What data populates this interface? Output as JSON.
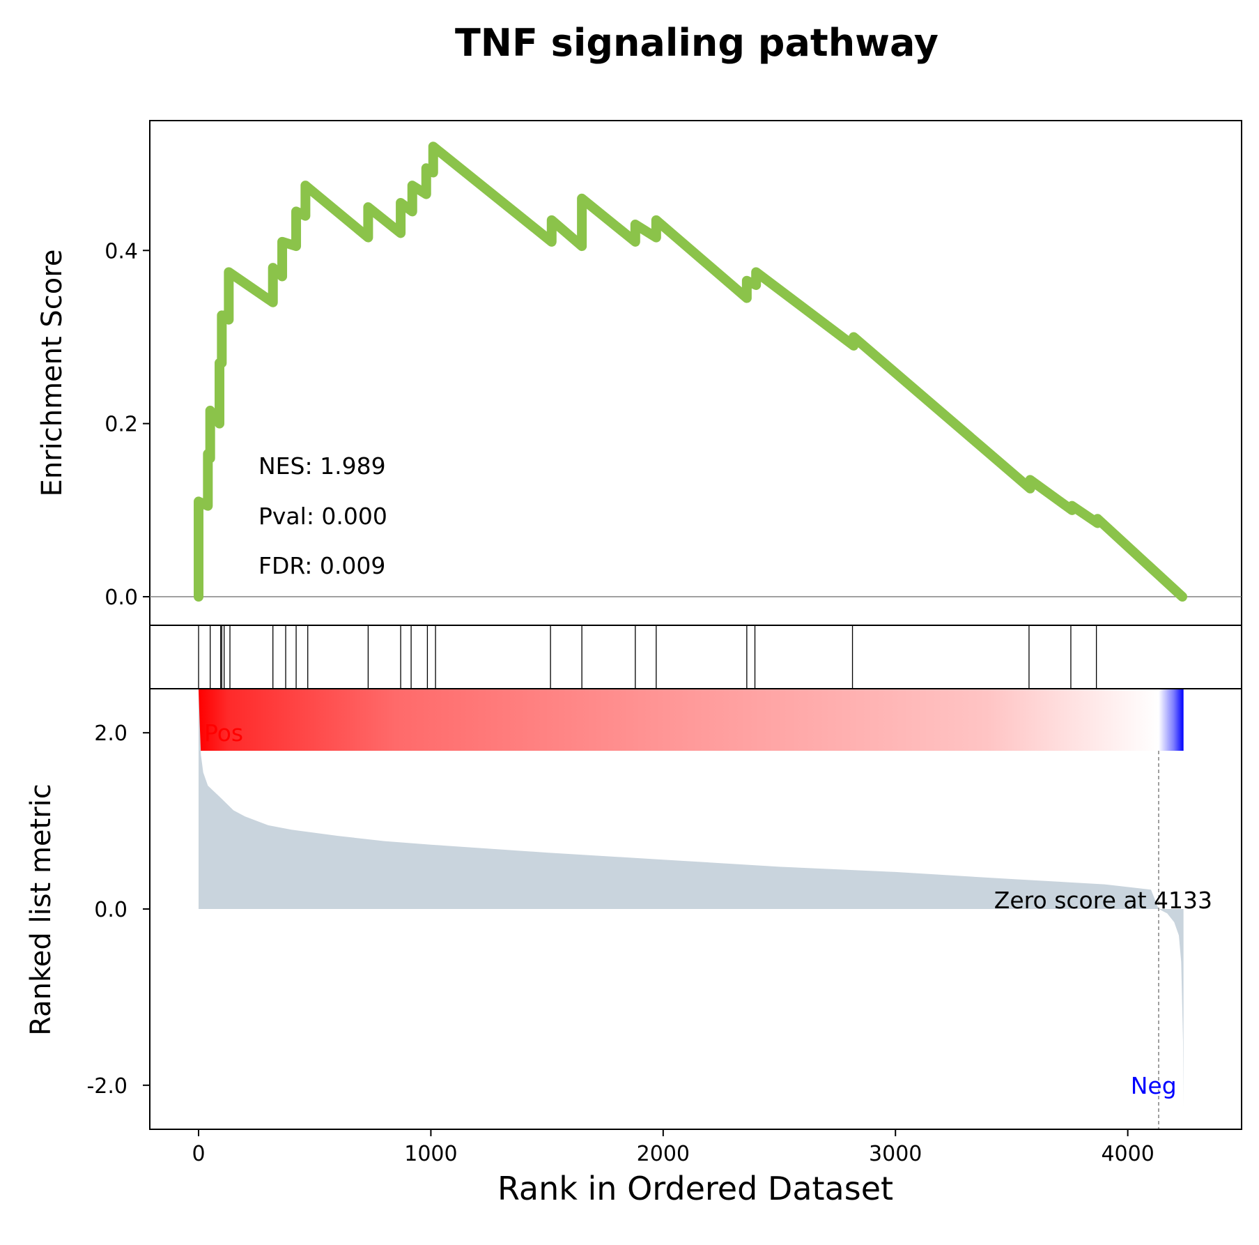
{
  "chart_data": {
    "type": "line",
    "title": "TNF signaling pathway",
    "xlabel": "Rank in Ordered Dataset",
    "xlim": [
      -210,
      4490
    ],
    "x_ticks": [
      "0",
      "1000",
      "2000",
      "3000",
      "4000"
    ],
    "x_tick_values": [
      0,
      1000,
      2000,
      3000,
      4000
    ],
    "enrichment": {
      "ylabel": "Enrichment Score",
      "ylim": [
        -0.033,
        0.55
      ],
      "y_ticks": [
        "0.0",
        "0.2",
        "0.4"
      ],
      "y_tick_values": [
        0.0,
        0.2,
        0.4
      ],
      "line_color": "#8bc34a",
      "stats": {
        "nes": "NES: 1.989",
        "pval": "Pval: 0.000",
        "fdr": "FDR: 0.009"
      },
      "curve": {
        "x": [
          0,
          0,
          40,
          40,
          50,
          50,
          90,
          90,
          100,
          100,
          110,
          110,
          130,
          130,
          320,
          320,
          360,
          360,
          420,
          420,
          460,
          460,
          730,
          730,
          870,
          870,
          920,
          920,
          980,
          980,
          1010,
          1010,
          1520,
          1520,
          1650,
          1650,
          1880,
          1880,
          1970,
          1970,
          2360,
          2360,
          2400,
          2400,
          2820,
          2820,
          3580,
          3580,
          3760,
          3760,
          3870,
          3870,
          4235
        ],
        "y": [
          0.0,
          0.11,
          0.105,
          0.165,
          0.16,
          0.215,
          0.2,
          0.27,
          0.27,
          0.325,
          0.32,
          0.325,
          0.32,
          0.375,
          0.34,
          0.38,
          0.37,
          0.41,
          0.405,
          0.445,
          0.44,
          0.475,
          0.415,
          0.45,
          0.42,
          0.455,
          0.445,
          0.475,
          0.465,
          0.495,
          0.49,
          0.52,
          0.41,
          0.435,
          0.405,
          0.46,
          0.41,
          0.43,
          0.415,
          0.435,
          0.345,
          0.365,
          0.36,
          0.375,
          0.29,
          0.3,
          0.125,
          0.135,
          0.1,
          0.105,
          0.085,
          0.09,
          0.0
        ]
      }
    },
    "hits": [
      0,
      50,
      95,
      100,
      110,
      135,
      320,
      375,
      420,
      470,
      730,
      870,
      915,
      985,
      1020,
      1515,
      1650,
      1880,
      1970,
      2360,
      2395,
      2815,
      3575,
      3755,
      3865
    ],
    "color_bar": {
      "colors": [
        "#ff0000",
        "#ffffff",
        "#0000ff"
      ],
      "zero_position": 4133,
      "end": 4240
    },
    "ranked_metric": {
      "ylabel": "Ranked list metric",
      "ylim": [
        -2.5,
        2.5
      ],
      "y_ticks": [
        "-2.0",
        "0.0",
        "2.0"
      ],
      "y_tick_values": [
        -2.0,
        0.0,
        2.0
      ],
      "fill_color": "#c9d4dd",
      "zero_score_label": "Zero score at 4133",
      "zero_score_at": 4133,
      "pos_label": "Pos",
      "neg_label": "Neg",
      "pos_color": "#ff0000",
      "neg_color": "#0000ff",
      "curve": {
        "x": [
          0,
          0,
          5,
          10,
          20,
          40,
          60,
          80,
          100,
          150,
          200,
          300,
          400,
          600,
          800,
          1000,
          1500,
          2000,
          2500,
          3000,
          3500,
          3900,
          4100,
          4133,
          4170,
          4200,
          4220,
          4230,
          4238,
          4240,
          4240
        ],
        "y": [
          0.0,
          2.48,
          2.1,
          1.75,
          1.55,
          1.4,
          1.35,
          1.3,
          1.25,
          1.12,
          1.05,
          0.95,
          0.9,
          0.83,
          0.77,
          0.73,
          0.64,
          0.56,
          0.48,
          0.42,
          0.34,
          0.28,
          0.22,
          0.0,
          -0.05,
          -0.15,
          -0.3,
          -0.6,
          -1.5,
          -2.25,
          0.0
        ]
      }
    }
  }
}
